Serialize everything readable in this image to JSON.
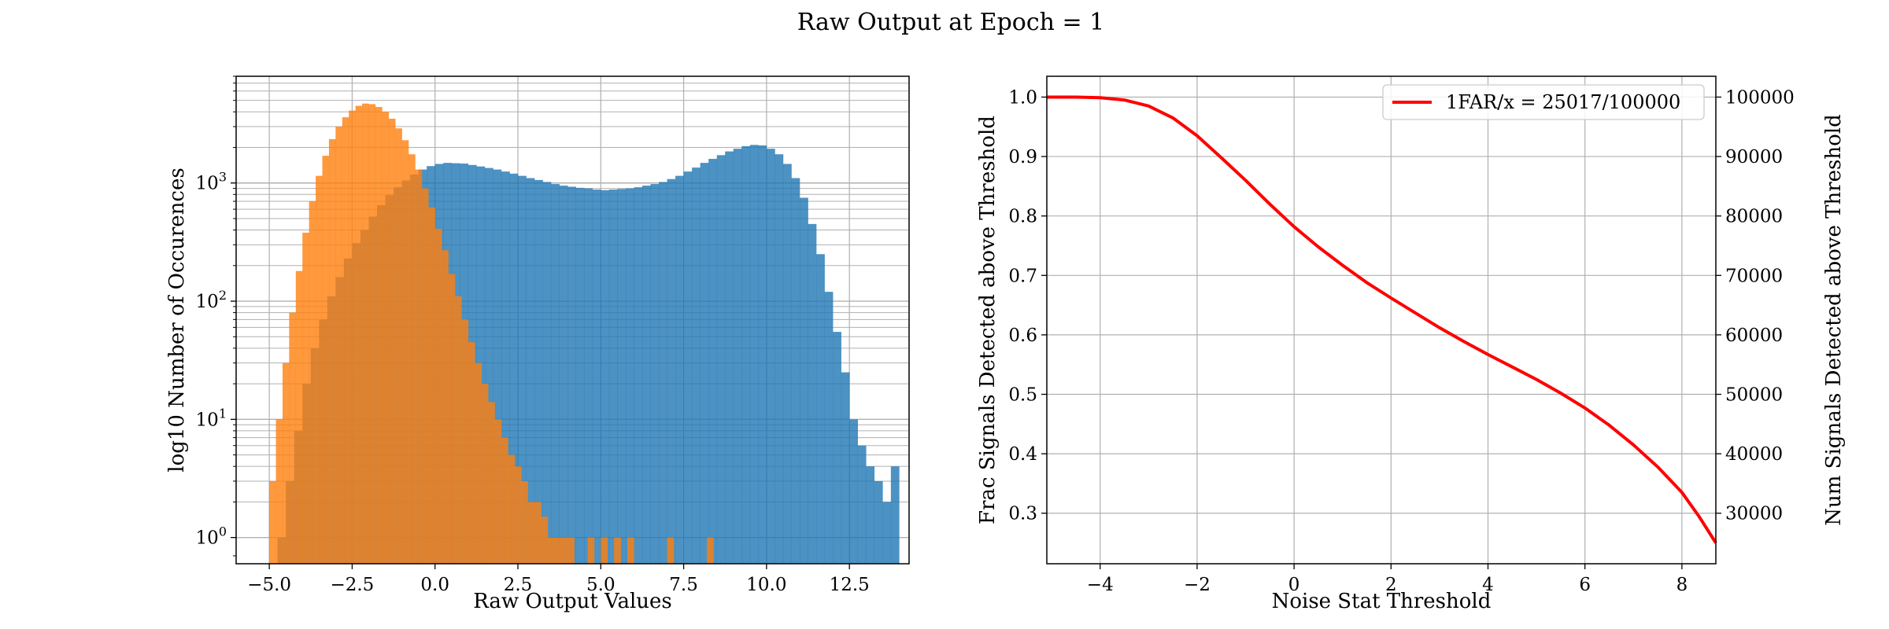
{
  "figure": {
    "title": "Raw Output at Epoch = 1"
  },
  "chart_data": [
    {
      "type": "histogram",
      "xlabel": "Raw Output Values",
      "ylabel": "log10 Number of Occurences",
      "yscale": "log",
      "xlim": [
        -6.0,
        14.3
      ],
      "ylim": [
        0.6,
        8000
      ],
      "xticks": [
        -5.0,
        -2.5,
        0.0,
        2.5,
        5.0,
        7.5,
        10.0,
        12.5
      ],
      "xtick_labels": [
        "−5.0",
        "−2.5",
        "0.0",
        "2.5",
        "5.0",
        "7.5",
        "10.0",
        "12.5"
      ],
      "yticks": [
        1,
        10,
        100,
        1000
      ],
      "grid": true,
      "series": [
        {
          "color": "#1f77b4",
          "alpha": 0.8,
          "bin_width": 0.25,
          "bins": [
            [
              -4.75,
              1
            ],
            [
              -4.5,
              3
            ],
            [
              -4.25,
              8
            ],
            [
              -4.0,
              20
            ],
            [
              -3.75,
              40
            ],
            [
              -3.5,
              70
            ],
            [
              -3.25,
              110
            ],
            [
              -3.0,
              160
            ],
            [
              -2.75,
              230
            ],
            [
              -2.5,
              310
            ],
            [
              -2.25,
              400
            ],
            [
              -2.0,
              520
            ],
            [
              -1.75,
              650
            ],
            [
              -1.5,
              790
            ],
            [
              -1.25,
              920
            ],
            [
              -1.0,
              1050
            ],
            [
              -0.75,
              1180
            ],
            [
              -0.5,
              1300
            ],
            [
              -0.25,
              1390
            ],
            [
              0.0,
              1450
            ],
            [
              0.25,
              1480
            ],
            [
              0.5,
              1470
            ],
            [
              0.75,
              1460
            ],
            [
              1.0,
              1420
            ],
            [
              1.25,
              1380
            ],
            [
              1.5,
              1340
            ],
            [
              1.75,
              1300
            ],
            [
              2.0,
              1250
            ],
            [
              2.25,
              1200
            ],
            [
              2.5,
              1150
            ],
            [
              2.75,
              1100
            ],
            [
              3.0,
              1060
            ],
            [
              3.25,
              1020
            ],
            [
              3.5,
              980
            ],
            [
              3.75,
              950
            ],
            [
              4.0,
              930
            ],
            [
              4.25,
              910
            ],
            [
              4.5,
              900
            ],
            [
              4.75,
              880
            ],
            [
              5.0,
              870
            ],
            [
              5.25,
              880
            ],
            [
              5.5,
              890
            ],
            [
              5.75,
              900
            ],
            [
              6.0,
              920
            ],
            [
              6.25,
              950
            ],
            [
              6.5,
              980
            ],
            [
              6.75,
              1020
            ],
            [
              7.0,
              1080
            ],
            [
              7.25,
              1150
            ],
            [
              7.5,
              1250
            ],
            [
              7.75,
              1350
            ],
            [
              8.0,
              1480
            ],
            [
              8.25,
              1600
            ],
            [
              8.5,
              1720
            ],
            [
              8.75,
              1850
            ],
            [
              9.0,
              1950
            ],
            [
              9.25,
              2050
            ],
            [
              9.5,
              2100
            ],
            [
              9.75,
              2080
            ],
            [
              10.0,
              1950
            ],
            [
              10.25,
              1750
            ],
            [
              10.5,
              1450
            ],
            [
              10.75,
              1100
            ],
            [
              11.0,
              750
            ],
            [
              11.25,
              450
            ],
            [
              11.5,
              250
            ],
            [
              11.75,
              120
            ],
            [
              12.0,
              55
            ],
            [
              12.25,
              25
            ],
            [
              12.5,
              10
            ],
            [
              12.75,
              6
            ],
            [
              13.0,
              4
            ],
            [
              13.25,
              3
            ],
            [
              13.5,
              2
            ],
            [
              13.75,
              4
            ]
          ]
        },
        {
          "color": "#ff7f0e",
          "alpha": 0.8,
          "bin_width": 0.2,
          "bins": [
            [
              -5.0,
              3
            ],
            [
              -4.8,
              10
            ],
            [
              -4.6,
              30
            ],
            [
              -4.4,
              80
            ],
            [
              -4.2,
              180
            ],
            [
              -4.0,
              380
            ],
            [
              -3.8,
              700
            ],
            [
              -3.6,
              1150
            ],
            [
              -3.4,
              1700
            ],
            [
              -3.2,
              2350
            ],
            [
              -3.0,
              3000
            ],
            [
              -2.8,
              3600
            ],
            [
              -2.6,
              4100
            ],
            [
              -2.4,
              4500
            ],
            [
              -2.2,
              4700
            ],
            [
              -2.0,
              4650
            ],
            [
              -1.8,
              4400
            ],
            [
              -1.6,
              4000
            ],
            [
              -1.4,
              3500
            ],
            [
              -1.2,
              2900
            ],
            [
              -1.0,
              2300
            ],
            [
              -0.8,
              1750
            ],
            [
              -0.6,
              1300
            ],
            [
              -0.4,
              900
            ],
            [
              -0.2,
              620
            ],
            [
              0.0,
              410
            ],
            [
              0.2,
              270
            ],
            [
              0.4,
              170
            ],
            [
              0.6,
              110
            ],
            [
              0.8,
              70
            ],
            [
              1.0,
              45
            ],
            [
              1.2,
              30
            ],
            [
              1.4,
              20
            ],
            [
              1.6,
              14
            ],
            [
              1.8,
              10
            ],
            [
              2.0,
              7
            ],
            [
              2.2,
              5
            ],
            [
              2.4,
              4
            ],
            [
              2.6,
              3
            ],
            [
              2.8,
              2
            ],
            [
              3.0,
              2
            ],
            [
              3.2,
              1.5
            ],
            [
              3.4,
              1
            ],
            [
              3.6,
              1
            ],
            [
              3.8,
              1
            ],
            [
              4.0,
              1
            ],
            [
              4.6,
              1
            ],
            [
              5.0,
              1
            ],
            [
              5.4,
              1
            ],
            [
              5.8,
              1
            ],
            [
              7.0,
              1
            ],
            [
              8.2,
              1
            ]
          ]
        }
      ]
    },
    {
      "type": "line",
      "xlabel": "Noise Stat Threshold",
      "ylabel": "Frac Signals Detected above Threshold",
      "ylabel_right": "Num Signals Detected above Threshold",
      "xlim": [
        -5.1,
        8.7
      ],
      "ylim": [
        0.215,
        1.035
      ],
      "ylim_right": [
        21500,
        103500
      ],
      "xticks": [
        -4,
        -2,
        0,
        2,
        4,
        6,
        8
      ],
      "xtick_labels": [
        "−4",
        "−2",
        "0",
        "2",
        "4",
        "6",
        "8"
      ],
      "yticks": [
        0.3,
        0.4,
        0.5,
        0.6,
        0.7,
        0.8,
        0.9,
        1.0
      ],
      "ytick_labels": [
        "0.3",
        "0.4",
        "0.5",
        "0.6",
        "0.7",
        "0.8",
        "0.9",
        "1.0"
      ],
      "yticks_right": [
        30000,
        40000,
        50000,
        60000,
        70000,
        80000,
        90000,
        100000
      ],
      "ytick_labels_right": [
        "30000",
        "40000",
        "50000",
        "60000",
        "70000",
        "80000",
        "90000",
        "100000"
      ],
      "grid": true,
      "legend_position": "top-right",
      "series": [
        {
          "name": "1FAR/x = 25017/100000",
          "color": "#ff0000",
          "x": [
            -5.1,
            -4.5,
            -4.0,
            -3.5,
            -3.0,
            -2.5,
            -2.0,
            -1.5,
            -1.0,
            -0.5,
            0.0,
            0.5,
            1.0,
            1.5,
            2.0,
            2.5,
            3.0,
            3.5,
            4.0,
            4.5,
            5.0,
            5.5,
            6.0,
            6.5,
            7.0,
            7.5,
            8.0,
            8.35,
            8.7
          ],
          "y": [
            1.0,
            1.0,
            0.999,
            0.995,
            0.985,
            0.965,
            0.935,
            0.898,
            0.86,
            0.82,
            0.782,
            0.748,
            0.717,
            0.688,
            0.662,
            0.637,
            0.612,
            0.589,
            0.567,
            0.546,
            0.525,
            0.502,
            0.477,
            0.448,
            0.415,
            0.378,
            0.335,
            0.295,
            0.25
          ]
        }
      ]
    }
  ]
}
